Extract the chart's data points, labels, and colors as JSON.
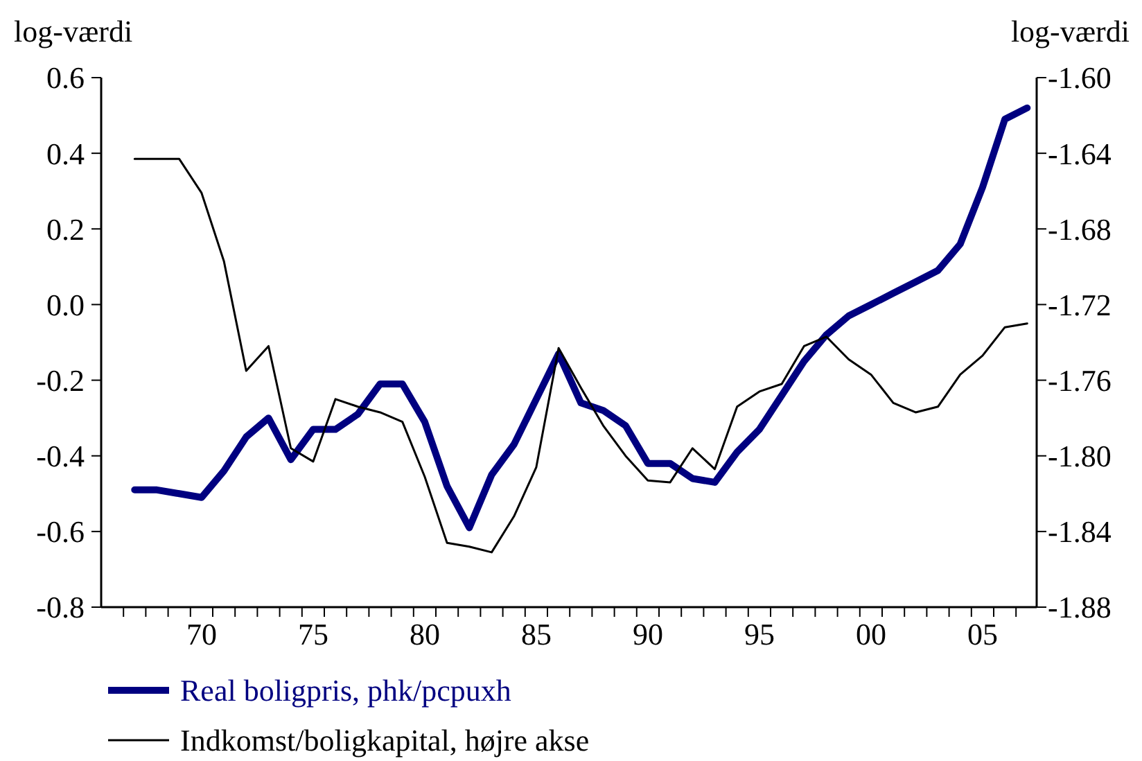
{
  "chart_data": {
    "type": "line",
    "ylabel": "log-værdi",
    "y2label": "log-værdi",
    "categories": [
      null,
      null,
      null,
      null,
      "70",
      null,
      null,
      null,
      null,
      "75",
      null,
      null,
      null,
      null,
      "80",
      null,
      null,
      null,
      null,
      "85",
      null,
      null,
      null,
      null,
      "90",
      null,
      null,
      null,
      null,
      "95",
      null,
      null,
      null,
      null,
      "00",
      null,
      null,
      null,
      null,
      "05",
      null,
      null
    ],
    "ylim": [
      -0.8,
      0.6
    ],
    "yticks": [
      {
        "value": -0.8,
        "label": "-0.8"
      },
      {
        "value": -0.6,
        "label": "-0.6"
      },
      {
        "value": -0.4,
        "label": "-0.4"
      },
      {
        "value": -0.2,
        "label": "-0.2"
      },
      {
        "value": 0,
        "label": "0.0"
      },
      {
        "value": 0.2,
        "label": "0.2"
      },
      {
        "value": 0.4,
        "label": "0.4"
      },
      {
        "value": 0.6,
        "label": "0.6"
      }
    ],
    "y2lim": [
      -1.88,
      -1.6
    ],
    "y2ticks": [
      {
        "value": -1.88,
        "label": "-1.88"
      },
      {
        "value": -1.84,
        "label": "-1.84"
      },
      {
        "value": -1.8,
        "label": "-1.80"
      },
      {
        "value": -1.76,
        "label": "-1.76"
      },
      {
        "value": -1.72,
        "label": "-1.72"
      },
      {
        "value": -1.68,
        "label": "-1.68"
      },
      {
        "value": -1.64,
        "label": "-1.64"
      },
      {
        "value": -1.6,
        "label": "-1.60"
      }
    ],
    "grid": false,
    "legend": "bottom",
    "marker": "none",
    "line_style": "solid",
    "series": [
      {
        "name": "Real boligpris, phk/pcpuxh",
        "color": "#000080",
        "values": [
          null,
          -0.49,
          -0.49,
          -0.5,
          -0.51,
          -0.44,
          -0.35,
          -0.3,
          -0.41,
          -0.33,
          -0.33,
          -0.29,
          -0.21,
          -0.21,
          -0.31,
          -0.48,
          -0.59,
          -0.45,
          -0.37,
          -0.25,
          -0.13,
          -0.26,
          -0.28,
          -0.32,
          -0.42,
          -0.42,
          -0.46,
          -0.47,
          -0.39,
          -0.33,
          -0.24,
          -0.15,
          -0.08,
          -0.03,
          0.0,
          0.03,
          0.06,
          0.09,
          0.16,
          0.31,
          0.49,
          0.52
        ]
      },
      {
        "name": "Indkomst/boligkapital, højre akse",
        "color": "#000000",
        "axis": "y2",
        "values": [
          null,
          -1.643,
          -1.643,
          -1.643,
          -1.661,
          -1.697,
          -1.755,
          -1.742,
          -1.796,
          -1.803,
          -1.77,
          -1.774,
          -1.777,
          -1.782,
          -1.811,
          -1.846,
          -1.848,
          -1.851,
          -1.832,
          -1.806,
          -1.743,
          -1.764,
          -1.784,
          -1.8,
          -1.813,
          -1.814,
          -1.796,
          -1.807,
          -1.774,
          -1.766,
          -1.762,
          -1.742,
          -1.737,
          -1.749,
          -1.757,
          -1.772,
          -1.777,
          -1.774,
          -1.757,
          -1.747,
          -1.732,
          -1.73
        ]
      }
    ]
  }
}
